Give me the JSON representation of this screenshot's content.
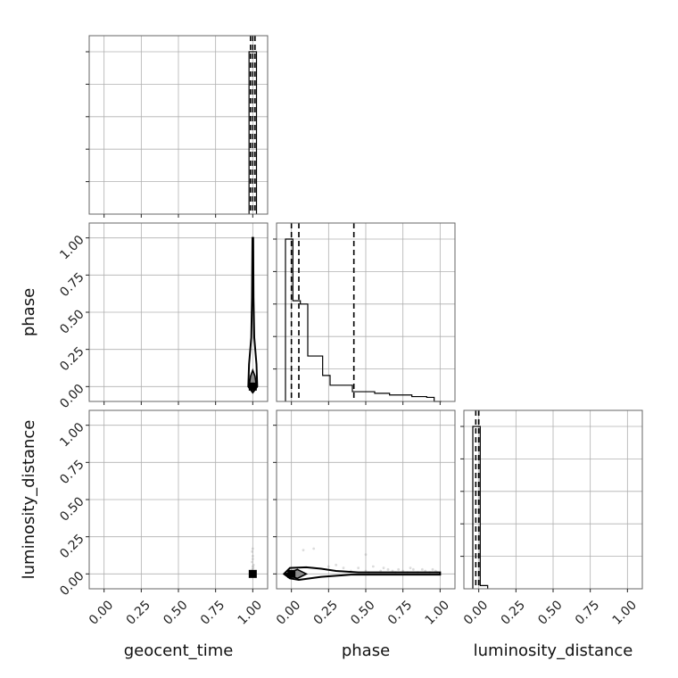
{
  "chart_data": {
    "type": "corner",
    "parameters": [
      "geocent_time",
      "phase",
      "luminosity_distance"
    ],
    "tick_values": [
      0.0,
      0.25,
      0.5,
      0.75,
      1.0
    ],
    "tick_labels": [
      "0.00",
      "0.25",
      "0.50",
      "0.75",
      "1.00"
    ],
    "xlim": [
      -0.1,
      1.1
    ],
    "grid": true,
    "histograms": [
      {
        "parameter": "geocent_time",
        "bin_edges": [
          0.975,
          1.025
        ],
        "counts": [
          1.0
        ],
        "quantiles": [
          0.985,
          1.0,
          1.015
        ]
      },
      {
        "parameter": "phase",
        "bin_edges": [
          -0.04,
          0.01,
          0.06,
          0.11,
          0.16,
          0.21,
          0.26,
          0.31,
          0.36,
          0.41,
          0.46,
          0.51,
          0.56,
          0.61,
          0.66,
          0.71,
          0.76,
          0.81,
          0.86,
          0.91,
          0.96,
          1.01
        ],
        "counts": [
          1.0,
          0.62,
          0.6,
          0.28,
          0.28,
          0.16,
          0.1,
          0.1,
          0.1,
          0.06,
          0.06,
          0.06,
          0.05,
          0.05,
          0.04,
          0.04,
          0.04,
          0.03,
          0.03,
          0.025,
          0.0
        ],
        "quantiles": [
          0.0,
          0.05,
          0.42
        ]
      },
      {
        "parameter": "luminosity_distance",
        "bin_edges": [
          -0.04,
          0.01,
          0.06
        ],
        "counts": [
          1.0,
          0.02
        ],
        "quantiles": [
          -0.02,
          0.0,
          0.0
        ]
      }
    ],
    "pairs": [
      {
        "x": "geocent_time",
        "y": "phase",
        "peak": [
          1.0,
          0.0
        ],
        "inner_contour": [
          [
            0.975,
            0.0
          ],
          [
            0.985,
            0.07
          ],
          [
            1.0,
            0.11
          ],
          [
            1.015,
            0.07
          ],
          [
            1.025,
            0.0
          ],
          [
            1.0,
            -0.02
          ]
        ],
        "outer_contour": [
          [
            0.97,
            0.0
          ],
          [
            0.975,
            0.15
          ],
          [
            0.99,
            0.33
          ],
          [
            0.995,
            0.6
          ],
          [
            0.998,
            1.0
          ],
          [
            1.003,
            1.0
          ],
          [
            1.005,
            0.6
          ],
          [
            1.01,
            0.33
          ],
          [
            1.025,
            0.15
          ],
          [
            1.03,
            0.0
          ],
          [
            1.0,
            -0.04
          ]
        ]
      },
      {
        "x": "geocent_time",
        "y": "luminosity_distance",
        "peak": [
          1.0,
          0.0
        ],
        "samples": [
          [
            1.0,
            0.17
          ],
          [
            1.0,
            0.1
          ],
          [
            0.995,
            0.08
          ],
          [
            1.005,
            0.06
          ],
          [
            1.0,
            0.05
          ],
          [
            0.998,
            0.03
          ],
          [
            1.003,
            0.04
          ],
          [
            1.0,
            0.12
          ],
          [
            0.996,
            0.15
          ]
        ]
      },
      {
        "x": "phase",
        "y": "luminosity_distance",
        "peak": [
          0.0,
          0.0
        ],
        "inner_contour": [
          [
            -0.04,
            0.0
          ],
          [
            0.04,
            0.03
          ],
          [
            0.1,
            0.0
          ],
          [
            0.04,
            -0.03
          ]
        ],
        "outer_contour": [
          [
            -0.05,
            0.0
          ],
          [
            -0.01,
            0.04
          ],
          [
            0.1,
            0.045
          ],
          [
            0.2,
            0.035
          ],
          [
            0.3,
            0.02
          ],
          [
            0.45,
            0.01
          ],
          [
            1.0,
            0.01
          ],
          [
            1.0,
            -0.005
          ],
          [
            0.4,
            -0.005
          ],
          [
            0.2,
            -0.02
          ],
          [
            0.05,
            -0.04
          ],
          [
            -0.01,
            -0.03
          ]
        ],
        "samples": [
          [
            0.15,
            0.17
          ],
          [
            0.5,
            0.13
          ],
          [
            0.08,
            0.16
          ],
          [
            0.3,
            0.06
          ],
          [
            0.45,
            0.04
          ],
          [
            0.55,
            0.05
          ],
          [
            0.6,
            0.02
          ],
          [
            0.65,
            0.03
          ],
          [
            0.7,
            0.01
          ],
          [
            0.75,
            0.02
          ],
          [
            0.8,
            0.04
          ],
          [
            0.85,
            0.01
          ],
          [
            0.9,
            0.02
          ],
          [
            0.95,
            0.03
          ],
          [
            0.98,
            0.01
          ],
          [
            0.35,
            0.04
          ],
          [
            0.4,
            0.02
          ],
          [
            0.5,
            0.02
          ],
          [
            0.62,
            0.04
          ],
          [
            0.72,
            0.03
          ],
          [
            0.88,
            0.03
          ],
          [
            0.93,
            0.01
          ],
          [
            0.25,
            0.05
          ],
          [
            0.52,
            0.01
          ],
          [
            0.68,
            0.02
          ],
          [
            0.78,
            0.01
          ],
          [
            0.82,
            0.03
          ],
          [
            0.97,
            0.02
          ]
        ]
      }
    ]
  }
}
